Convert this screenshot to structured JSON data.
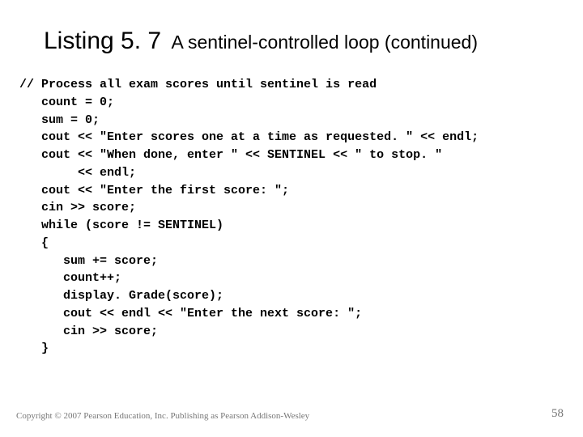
{
  "title": {
    "listing": "Listing 5. 7",
    "subtitle": "A sentinel-controlled loop (continued)"
  },
  "code": {
    "lines": [
      "// Process all exam scores until sentinel is read",
      "   count = 0;",
      "   sum = 0;",
      "   cout << \"Enter scores one at a time as requested. \" << endl;",
      "   cout << \"When done, enter \" << SENTINEL << \" to stop. \"",
      "        << endl;",
      "   cout << \"Enter the first score: \";",
      "   cin >> score;",
      "   while (score != SENTINEL)",
      "   {",
      "      sum += score;",
      "      count++;",
      "      display. Grade(score);",
      "      cout << endl << \"Enter the next score: \";",
      "      cin >> score;",
      "   }"
    ]
  },
  "footer": {
    "copyright": "Copyright © 2007 Pearson Education, Inc. Publishing as Pearson Addison-Wesley",
    "page": "58"
  },
  "colors": {
    "background": "#ffffff",
    "text": "#000000",
    "footer": "#777777"
  }
}
